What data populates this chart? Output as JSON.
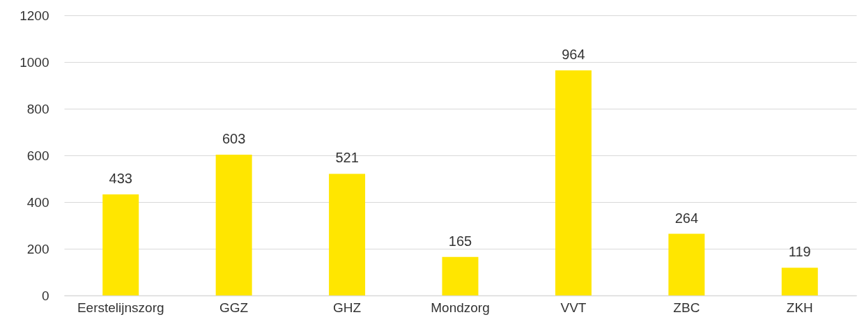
{
  "chart_data": {
    "type": "bar",
    "categories": [
      "Eerstelijnszorg",
      "GGZ",
      "GHZ",
      "Mondzorg",
      "VVT",
      "ZBC",
      "ZKH"
    ],
    "values": [
      433,
      603,
      521,
      165,
      964,
      264,
      119
    ],
    "color": "#ffe600",
    "ylim": [
      0,
      1200
    ],
    "yticks": [
      0,
      200,
      400,
      600,
      800,
      1000,
      1200
    ],
    "grid": "y",
    "data_labels": true
  }
}
